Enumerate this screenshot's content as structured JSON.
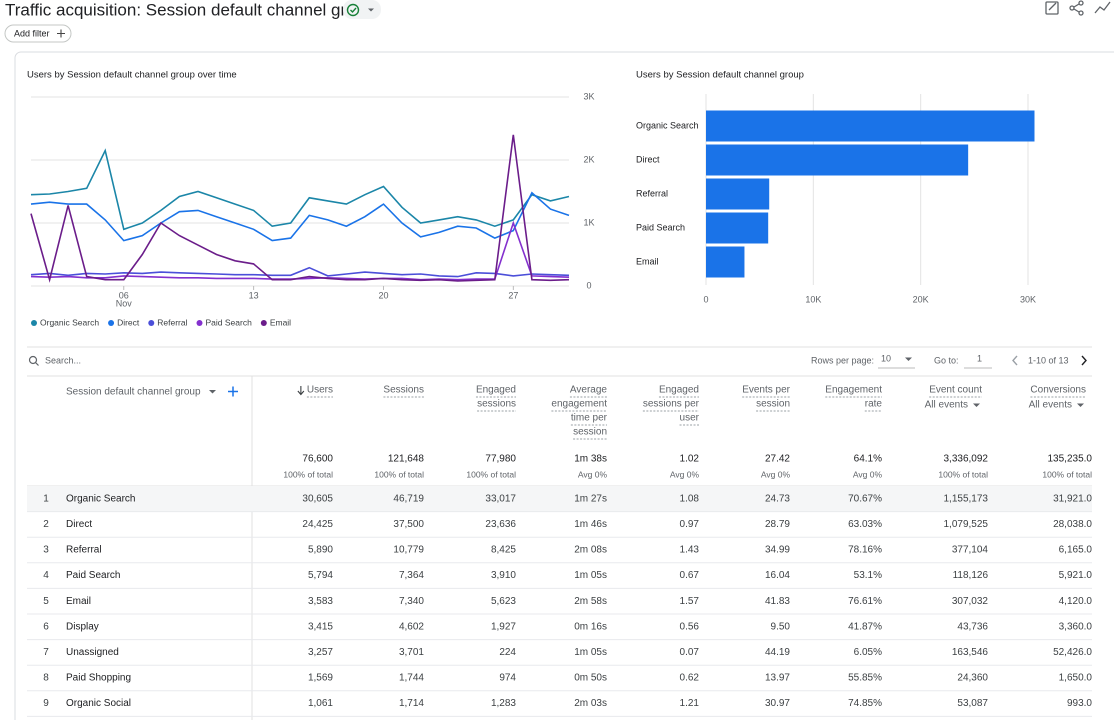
{
  "header": {
    "title": "Traffic acquisition: Session default channel group",
    "add_filter": "Add filter"
  },
  "chart_data": [
    {
      "type": "line",
      "title": "Users by Session default channel group over time",
      "x": [
        1,
        2,
        3,
        4,
        5,
        6,
        7,
        8,
        9,
        10,
        11,
        12,
        13,
        14,
        15,
        16,
        17,
        18,
        19,
        20,
        21,
        22,
        23,
        24,
        25,
        26,
        27,
        28,
        29,
        30
      ],
      "xlim": [
        1,
        30
      ],
      "xticks": [
        {
          "value": 6,
          "label": "06"
        },
        13,
        20,
        27
      ],
      "x_month_label": "Nov",
      "ylim": [
        0,
        3000
      ],
      "yticks": [
        0,
        {
          "value": 1000,
          "label": "1K"
        },
        {
          "value": 2000,
          "label": "2K"
        },
        {
          "value": 3000,
          "label": "3K"
        }
      ],
      "grid": true,
      "legend": "bottom",
      "series": [
        {
          "name": "Organic Search",
          "color": "#1b86a8",
          "values": [
            1450,
            1460,
            1500,
            1550,
            2150,
            900,
            1000,
            1200,
            1420,
            1500,
            1400,
            1300,
            1200,
            950,
            1000,
            1400,
            1350,
            1300,
            1450,
            1580,
            1250,
            1000,
            1050,
            1100,
            1050,
            950,
            1050,
            1450,
            1350,
            1420
          ]
        },
        {
          "name": "Direct",
          "color": "#1a73e8",
          "values": [
            1300,
            1330,
            1300,
            1300,
            1050,
            720,
            800,
            1000,
            1180,
            1200,
            1100,
            1000,
            900,
            720,
            760,
            1120,
            1050,
            950,
            1100,
            1300,
            1000,
            780,
            850,
            950,
            920,
            760,
            880,
            1480,
            1220,
            1120
          ]
        },
        {
          "name": "Referral",
          "color": "#4b4fd9",
          "values": [
            180,
            200,
            170,
            200,
            190,
            210,
            200,
            220,
            210,
            200,
            190,
            180,
            180,
            170,
            170,
            290,
            160,
            190,
            220,
            200,
            180,
            190,
            160,
            150,
            210,
            200,
            160,
            190,
            180,
            170
          ]
        },
        {
          "name": "Paid Search",
          "color": "#8430ce",
          "values": [
            150,
            140,
            150,
            130,
            130,
            160,
            150,
            140,
            130,
            130,
            120,
            120,
            120,
            110,
            110,
            120,
            130,
            120,
            110,
            120,
            120,
            100,
            110,
            100,
            110,
            110,
            1000,
            160,
            150,
            140
          ]
        },
        {
          "name": "Email",
          "color": "#6b1d8a",
          "values": [
            1150,
            100,
            1280,
            150,
            100,
            100,
            500,
            1000,
            800,
            650,
            500,
            400,
            350,
            100,
            100,
            150,
            120,
            100,
            100,
            120,
            100,
            90,
            100,
            80,
            90,
            100,
            2400,
            100,
            90,
            100
          ]
        }
      ]
    },
    {
      "type": "bar",
      "orientation": "horizontal",
      "title": "Users by Session default channel group",
      "categories": [
        "Organic Search",
        "Direct",
        "Referral",
        "Paid Search",
        "Email"
      ],
      "values": [
        30605,
        24425,
        5890,
        5794,
        3583
      ],
      "color": "#1a73e8",
      "xlim": [
        0,
        30000
      ],
      "xticks": [
        0,
        {
          "value": 10000,
          "label": "10K"
        },
        {
          "value": 20000,
          "label": "20K"
        },
        {
          "value": 30000,
          "label": "30K"
        }
      ],
      "grid": true
    }
  ],
  "table": {
    "search_placeholder": "Search...",
    "rows_per_page_label": "Rows per page:",
    "rows_per_page": "10",
    "go_to_label": "Go to:",
    "go_to": "1",
    "range": "1-10 of 13",
    "dimension": "Session default channel group",
    "columns": [
      {
        "lines": [
          "Users"
        ]
      },
      {
        "lines": [
          "Sessions"
        ]
      },
      {
        "lines": [
          "Engaged",
          "sessions"
        ]
      },
      {
        "lines": [
          "Average",
          "engagement",
          "time per",
          "session"
        ]
      },
      {
        "lines": [
          "Engaged",
          "sessions per",
          "user"
        ]
      },
      {
        "lines": [
          "Events per",
          "session"
        ]
      },
      {
        "lines": [
          "Engagement",
          "rate"
        ]
      },
      {
        "lines": [
          "Event count"
        ],
        "sub": "All events"
      },
      {
        "lines": [
          "Conversions"
        ],
        "sub": "All events"
      }
    ],
    "totals": [
      "76,600",
      "121,648",
      "77,980",
      "1m 38s",
      "1.02",
      "27.42",
      "64.1%",
      "3,336,092",
      "135,235.0"
    ],
    "totals_sub": [
      "100% of total",
      "100% of total",
      "100% of total",
      "Avg 0%",
      "Avg 0%",
      "Avg 0%",
      "Avg 0%",
      "100% of total",
      "100% of total"
    ],
    "rows": [
      [
        "1",
        "Organic Search",
        "30,605",
        "46,719",
        "33,017",
        "1m 27s",
        "1.08",
        "24.73",
        "70.67%",
        "1,155,173",
        "31,921.0"
      ],
      [
        "2",
        "Direct",
        "24,425",
        "37,500",
        "23,636",
        "1m 46s",
        "0.97",
        "28.79",
        "63.03%",
        "1,079,525",
        "28,038.0"
      ],
      [
        "3",
        "Referral",
        "5,890",
        "10,779",
        "8,425",
        "2m 08s",
        "1.43",
        "34.99",
        "78.16%",
        "377,104",
        "6,165.0"
      ],
      [
        "4",
        "Paid Search",
        "5,794",
        "7,364",
        "3,910",
        "1m 05s",
        "0.67",
        "16.04",
        "53.1%",
        "118,126",
        "5,921.0"
      ],
      [
        "5",
        "Email",
        "3,583",
        "7,340",
        "5,623",
        "2m 58s",
        "1.57",
        "41.83",
        "76.61%",
        "307,032",
        "4,120.0"
      ],
      [
        "6",
        "Display",
        "3,415",
        "4,602",
        "1,927",
        "0m 16s",
        "0.56",
        "9.50",
        "41.87%",
        "43,736",
        "3,360.0"
      ],
      [
        "7",
        "Unassigned",
        "3,257",
        "3,701",
        "224",
        "1m 05s",
        "0.07",
        "44.19",
        "6.05%",
        "163,546",
        "52,426.0"
      ],
      [
        "8",
        "Paid Shopping",
        "1,569",
        "1,744",
        "974",
        "0m 50s",
        "0.62",
        "13.97",
        "55.85%",
        "24,360",
        "1,650.0"
      ],
      [
        "9",
        "Organic Social",
        "1,061",
        "1,714",
        "1,283",
        "2m 03s",
        "1.21",
        "30.97",
        "74.85%",
        "53,087",
        "993.0"
      ]
    ]
  }
}
